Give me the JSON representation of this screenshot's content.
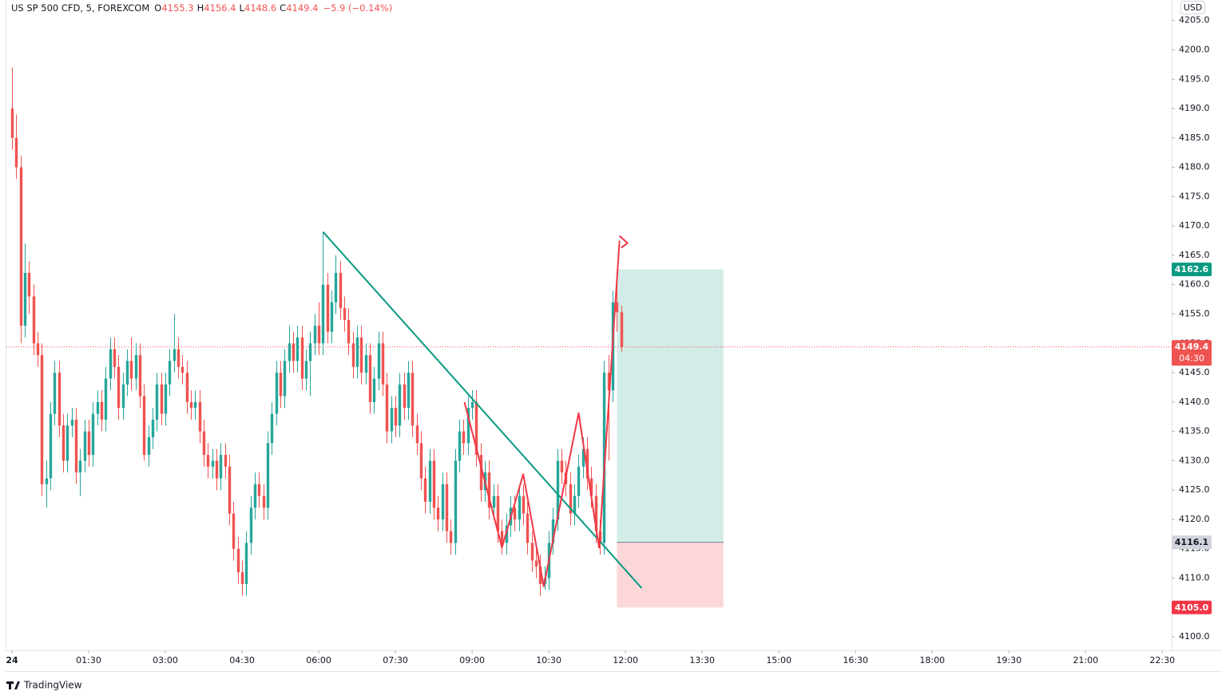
{
  "chart_data": {
    "type": "candlestick",
    "title": "US SP 500 CFD, 5, FOREXCOM",
    "ohlc_labels": [
      "O",
      "H",
      "L",
      "C"
    ],
    "change_label": "−5.9 (−0.14%)",
    "currency": "USD",
    "countdown": "04:30",
    "up_color": "#26a69a",
    "down_color": "#ef5350",
    "grid": false,
    "x": [
      "00:00",
      "00:05",
      "00:10",
      "00:15",
      "00:20",
      "00:25",
      "00:30",
      "00:35",
      "00:40",
      "00:45",
      "00:50",
      "00:55",
      "01:00",
      "01:05",
      "01:10",
      "01:15",
      "01:20",
      "01:25",
      "01:30",
      "01:35",
      "01:40",
      "01:45",
      "01:50",
      "01:55",
      "02:00",
      "02:05",
      "02:10",
      "02:15",
      "02:20",
      "02:25",
      "02:30",
      "02:35",
      "02:40",
      "02:45",
      "02:50",
      "02:55",
      "03:00",
      "03:05",
      "03:10",
      "03:15",
      "03:20",
      "03:25",
      "03:30",
      "03:35",
      "03:40",
      "03:45",
      "03:50",
      "03:55",
      "04:00",
      "04:05",
      "04:10",
      "04:15",
      "04:20",
      "04:25",
      "04:30",
      "04:35",
      "04:40",
      "04:45",
      "04:50",
      "04:55",
      "05:00",
      "05:05",
      "05:10",
      "05:15",
      "05:20",
      "05:25",
      "05:30",
      "05:35",
      "05:40",
      "05:45",
      "05:50",
      "05:55",
      "06:00",
      "06:05",
      "06:10",
      "06:15",
      "06:20",
      "06:25",
      "06:30",
      "06:35",
      "06:40",
      "06:45",
      "06:50",
      "06:55",
      "07:00",
      "07:05",
      "07:10",
      "07:15",
      "07:20",
      "07:25",
      "07:30",
      "07:35",
      "07:40",
      "07:45",
      "07:50",
      "07:55",
      "08:00",
      "08:05",
      "08:10",
      "08:15",
      "08:20",
      "08:25",
      "08:30",
      "08:35",
      "08:40",
      "08:45",
      "08:50",
      "08:55",
      "09:00",
      "09:05",
      "09:10",
      "09:15",
      "09:20",
      "09:25",
      "09:30",
      "09:35",
      "09:40",
      "09:45",
      "09:50",
      "09:55",
      "10:00",
      "10:05",
      "10:10",
      "10:15",
      "10:20",
      "10:25",
      "10:30",
      "10:35",
      "10:40",
      "10:45",
      "10:50",
      "10:55",
      "11:00",
      "11:05",
      "11:10",
      "11:15",
      "11:20",
      "11:25",
      "11:30",
      "11:35",
      "11:40",
      "11:45",
      "11:50",
      "11:55"
    ],
    "open": [
      4190,
      4185,
      4180,
      4153,
      4162,
      4158,
      4150,
      4148,
      4126,
      4127,
      4138,
      4145,
      4136,
      4130,
      4136,
      4137,
      4128,
      4130,
      4135,
      4131,
      4138,
      4140,
      4137,
      4144,
      4149,
      4146,
      4139,
      4143,
      4147,
      4144,
      4148,
      4141,
      4131,
      4134,
      4137,
      4143,
      4138,
      4143,
      4147,
      4149,
      4146,
      4145,
      4140,
      4139,
      4140,
      4135,
      4131,
      4129,
      4130,
      4127,
      4131,
      4129,
      4121,
      4115,
      4111,
      4109,
      4116,
      4122,
      4126,
      4124,
      4122,
      4133,
      4138,
      4145,
      4141,
      4147,
      4150,
      4147,
      4151,
      4144,
      4147,
      4150,
      4153,
      4150,
      4160,
      4152,
      4157,
      4162,
      4156,
      4154,
      4150,
      4146,
      4151,
      4145,
      4148,
      4140,
      4144,
      4150,
      4143,
      4135,
      4139,
      4136,
      4143,
      4139,
      4145,
      4136,
      4133,
      4127,
      4123,
      4130,
      4122,
      4120,
      4126,
      4118,
      4116,
      4130,
      4135,
      4133,
      4139,
      4140,
      4131,
      4125,
      4128,
      4122,
      4124,
      4118,
      4116,
      4119,
      4122,
      4120,
      4124,
      4121,
      4116,
      4113,
      4112,
      4109,
      4110,
      4116,
      4120,
      4130,
      4128,
      4126,
      4121,
      4124,
      4129,
      4132,
      4127,
      4124,
      4118,
      4116,
      4145,
      4142,
      4157,
      4155.3
    ],
    "high": [
      4197,
      4189,
      4182,
      4167,
      4164,
      4160,
      4152,
      4150,
      4130,
      4140,
      4147,
      4147,
      4138,
      4138,
      4139,
      4139,
      4132,
      4137,
      4137,
      4140,
      4142,
      4142,
      4146,
      4151,
      4151,
      4148,
      4145,
      4149,
      4151,
      4150,
      4150,
      4143,
      4136,
      4139,
      4145,
      4145,
      4145,
      4149,
      4155,
      4151,
      4148,
      4147,
      4142,
      4142,
      4142,
      4137,
      4133,
      4132,
      4132,
      4133,
      4133,
      4131,
      4123,
      4117,
      4113,
      4118,
      4124,
      4128,
      4128,
      4126,
      4135,
      4140,
      4147,
      4147,
      4149,
      4153,
      4152,
      4153,
      4153,
      4149,
      4152,
      4155,
      4157,
      4169,
      4162,
      4159,
      4165,
      4164,
      4158,
      4156,
      4152,
      4153,
      4153,
      4150,
      4150,
      4146,
      4152,
      4152,
      4145,
      4141,
      4141,
      4145,
      4145,
      4147,
      4147,
      4138,
      4135,
      4129,
      4132,
      4132,
      4124,
      4128,
      4128,
      4120,
      4132,
      4137,
      4137,
      4141,
      4142,
      4142,
      4133,
      4130,
      4130,
      4126,
      4126,
      4120,
      4121,
      4124,
      4124,
      4126,
      4126,
      4123,
      4118,
      4115,
      4114,
      4112,
      4118,
      4122,
      4132,
      4132,
      4130,
      4128,
      4126,
      4131,
      4134,
      4134,
      4129,
      4126,
      4120,
      4147,
      4148,
      4159,
      4160,
      4156.4
    ],
    "low": [
      4183,
      4178,
      4150,
      4151,
      4155,
      4148,
      4146,
      4124,
      4122,
      4125,
      4136,
      4134,
      4128,
      4128,
      4134,
      4126,
      4124,
      4128,
      4129,
      4129,
      4136,
      4135,
      4135,
      4142,
      4144,
      4137,
      4137,
      4141,
      4142,
      4142,
      4139,
      4130,
      4129,
      4132,
      4135,
      4136,
      4136,
      4141,
      4145,
      4144,
      4143,
      4138,
      4137,
      4137,
      4133,
      4129,
      4127,
      4127,
      4125,
      4125,
      4127,
      4119,
      4113,
      4109,
      4107,
      4107,
      4114,
      4120,
      4122,
      4120,
      4120,
      4131,
      4136,
      4139,
      4139,
      4145,
      4145,
      4145,
      4142,
      4142,
      4141,
      4148,
      4148,
      4148,
      4150,
      4150,
      4155,
      4154,
      4152,
      4148,
      4144,
      4144,
      4143,
      4143,
      4138,
      4138,
      4142,
      4141,
      4133,
      4133,
      4134,
      4134,
      4137,
      4137,
      4134,
      4131,
      4125,
      4121,
      4121,
      4120,
      4118,
      4118,
      4116,
      4114,
      4114,
      4128,
      4131,
      4131,
      4137,
      4129,
      4123,
      4123,
      4120,
      4120,
      4116,
      4114,
      4114,
      4117,
      4118,
      4118,
      4119,
      4114,
      4111,
      4110,
      4107,
      4108,
      4108,
      4114,
      4118,
      4126,
      4124,
      4119,
      4119,
      4122,
      4127,
      4125,
      4122,
      4116,
      4114,
      4114,
      4130,
      4140,
      4152,
      4148.6
    ],
    "close": [
      4185,
      4180,
      4153,
      4162,
      4158,
      4150,
      4148,
      4126,
      4127,
      4138,
      4145,
      4136,
      4130,
      4136,
      4137,
      4128,
      4130,
      4135,
      4131,
      4138,
      4140,
      4137,
      4144,
      4149,
      4146,
      4139,
      4143,
      4147,
      4144,
      4148,
      4141,
      4131,
      4134,
      4137,
      4143,
      4138,
      4143,
      4147,
      4149,
      4146,
      4145,
      4140,
      4139,
      4140,
      4135,
      4131,
      4129,
      4130,
      4127,
      4131,
      4129,
      4121,
      4115,
      4111,
      4109,
      4116,
      4122,
      4126,
      4124,
      4122,
      4133,
      4138,
      4145,
      4141,
      4147,
      4150,
      4147,
      4151,
      4144,
      4147,
      4150,
      4153,
      4150,
      4160,
      4152,
      4157,
      4162,
      4156,
      4154,
      4150,
      4146,
      4151,
      4145,
      4148,
      4140,
      4144,
      4150,
      4143,
      4135,
      4139,
      4136,
      4143,
      4139,
      4145,
      4136,
      4133,
      4127,
      4123,
      4130,
      4122,
      4120,
      4126,
      4118,
      4116,
      4130,
      4135,
      4133,
      4139,
      4140,
      4131,
      4125,
      4128,
      4122,
      4124,
      4118,
      4116,
      4119,
      4122,
      4120,
      4124,
      4121,
      4116,
      4113,
      4112,
      4109,
      4110,
      4116,
      4120,
      4130,
      4128,
      4126,
      4121,
      4124,
      4129,
      4132,
      4127,
      4124,
      4118,
      4116,
      4145,
      4142,
      4157,
      4155.3,
      4149.4
    ],
    "xlim": [
      "00:00",
      "22:41"
    ],
    "xticks": [
      {
        "value": "00:00",
        "label": "24"
      },
      "01:30",
      "03:00",
      "04:30",
      "06:00",
      "07:30",
      "09:00",
      "10:30",
      "12:00",
      "13:30",
      "15:00",
      "16:30",
      "18:00",
      "19:30",
      "21:00",
      "22:30"
    ],
    "ylim": [
      4097.7,
      4208.5
    ],
    "yticks": [
      {
        "value": 4100,
        "label": "4100.0"
      },
      {
        "value": 4105,
        "label": "4105.0"
      },
      {
        "value": 4110,
        "label": "4110.0"
      },
      {
        "value": 4115,
        "label": "4115.0"
      },
      {
        "value": 4120,
        "label": "4120.0"
      },
      {
        "value": 4125,
        "label": "4125.0"
      },
      {
        "value": 4130,
        "label": "4130.0"
      },
      {
        "value": 4135,
        "label": "4135.0"
      },
      {
        "value": 4140,
        "label": "4140.0"
      },
      {
        "value": 4145,
        "label": "4145.0"
      },
      {
        "value": 4150,
        "label": "4150.0"
      },
      {
        "value": 4155,
        "label": "4155.0"
      },
      {
        "value": 4160,
        "label": "4160.0"
      },
      {
        "value": 4165,
        "label": "4165.0"
      },
      {
        "value": 4170,
        "label": "4170.0"
      },
      {
        "value": 4175,
        "label": "4175.0"
      },
      {
        "value": 4180,
        "label": "4180.0"
      },
      {
        "value": 4185,
        "label": "4185.0"
      },
      {
        "value": 4190,
        "label": "4190.0"
      },
      {
        "value": 4195,
        "label": "4195.0"
      },
      {
        "value": 4200,
        "label": "4200.0"
      },
      {
        "value": 4205,
        "label": "4205.0"
      }
    ],
    "position": {
      "start": "11:50",
      "end": "13:55",
      "entry": 4116.1,
      "target": 4162.6,
      "stop": {
        "value": 4105,
        "label": "4105.0"
      },
      "profit_color": "#089981",
      "loss_color": "#f23645"
    },
    "trend_line": {
      "x": [
        "06:05",
        "12:19"
      ],
      "y": [
        4169,
        4108.3
      ],
      "color": "#089981"
    },
    "zigzag": {
      "x": [
        "08:51",
        "09:35",
        "10:00",
        "10:24",
        "11:05",
        "11:29",
        "11:53"
      ],
      "y": [
        4140,
        4115.2,
        4127.7,
        4108.6,
        4138.1,
        4115.2,
        4167.5
      ],
      "color": "#f23645"
    }
  },
  "footer": {
    "brand": "TradingView"
  }
}
